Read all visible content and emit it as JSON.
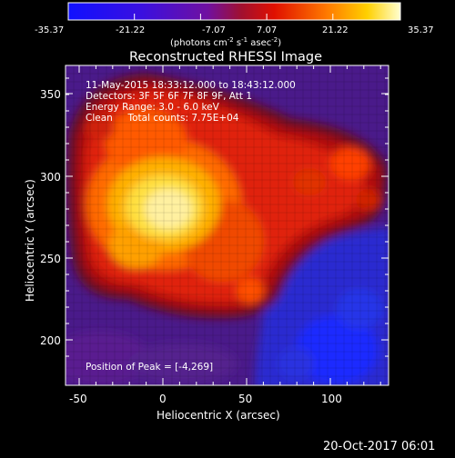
{
  "colorbar": {
    "tick_labels": [
      "-35.37",
      "-21.22",
      "-7.07",
      "7.07",
      "21.22",
      "35.37"
    ],
    "units_prefix": "(photons cm",
    "units_exp1": "-2",
    "units_mid": " s",
    "units_exp2": "-1",
    "units_mid2": " asec",
    "units_exp3": "-2",
    "units_suffix": ")"
  },
  "plot": {
    "title": "Reconstructed RHESSI Image",
    "info_lines": [
      "11-May-2015 18:33:12.000 to 18:43:12.000",
      "Detectors: 3F 5F 6F 7F 8F 9F, Att 1",
      "Energy Range: 3.0 - 6.0 keV",
      "Clean     Total counts: 7.75E+04"
    ],
    "peak_label": "Position of Peak = [-4,269]",
    "xlabel": "Heliocentric X (arcsec)",
    "ylabel": "Heliocentric Y (arcsec)",
    "xticks": [
      "-50",
      "0",
      "50",
      "100"
    ],
    "yticks": [
      "200",
      "250",
      "300",
      "350"
    ]
  },
  "footer": {
    "timestamp": "20-Oct-2017 06:01"
  },
  "colors": {
    "background": "#000000",
    "axis": "#ffffff"
  }
}
